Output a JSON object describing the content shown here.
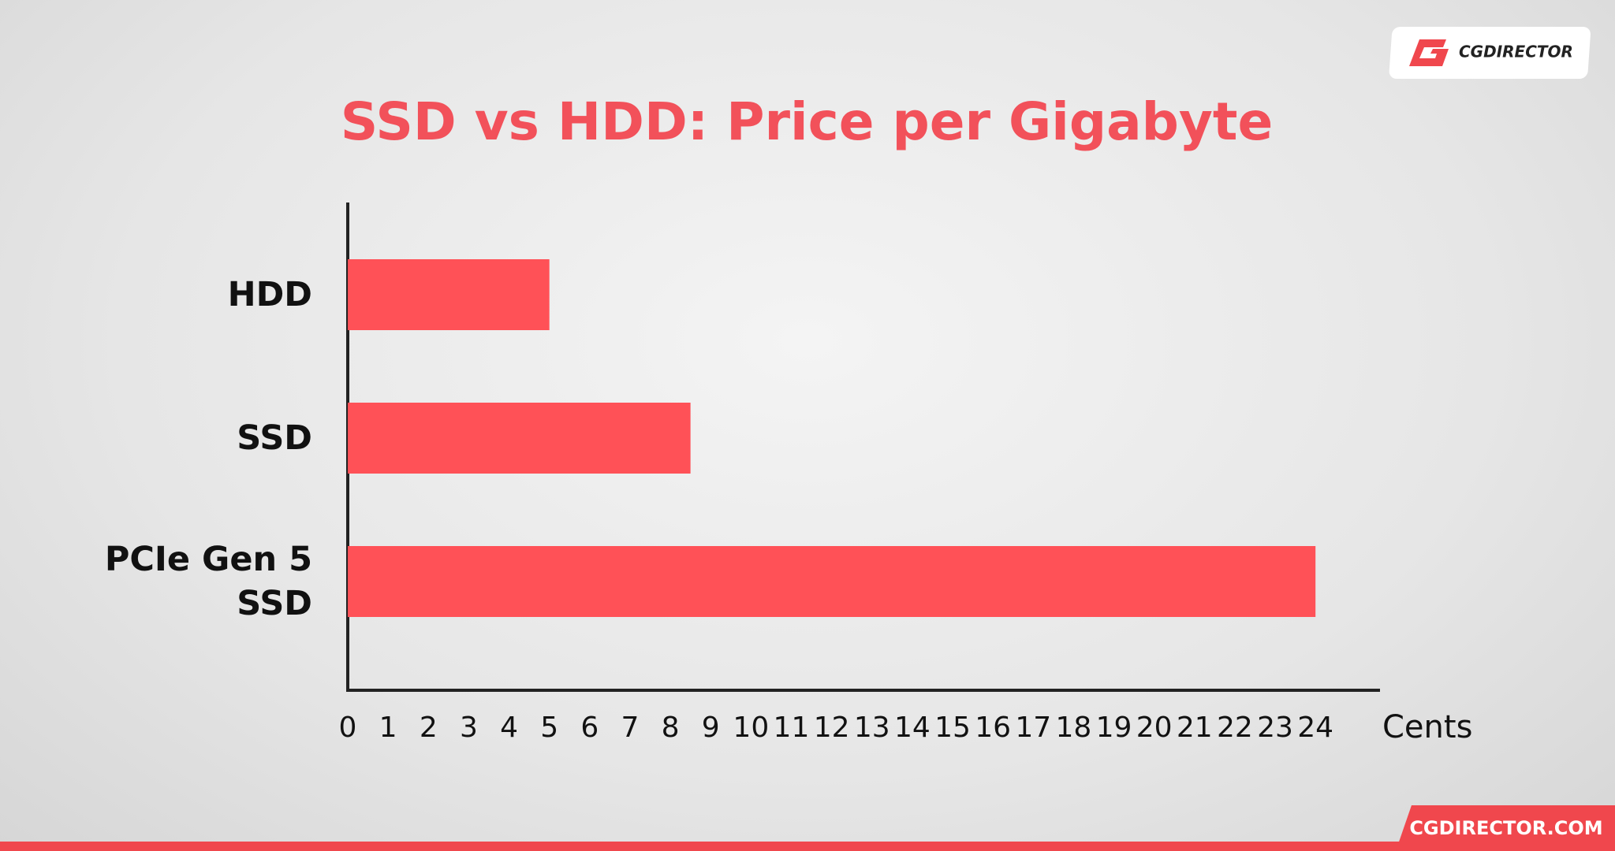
{
  "chart_data": {
    "type": "barh",
    "title": "SSD vs HDD: Price per Gigabyte",
    "categories": [
      "HDD",
      "SSD",
      "PCIe Gen 5 SSD"
    ],
    "values": [
      5,
      8.5,
      24
    ],
    "color": "#ff5157",
    "xlabel": "Cents",
    "xlim": [
      0,
      25.6
    ],
    "xticks": [
      0,
      1,
      2,
      3,
      4,
      5,
      6,
      7,
      8,
      9,
      10,
      11,
      12,
      13,
      14,
      15,
      16,
      17,
      18,
      19,
      20,
      21,
      22,
      23,
      24
    ],
    "grid": false
  },
  "brand": {
    "logo": "CGDIRECTOR",
    "footer": "CGDIRECTOR.COM"
  }
}
